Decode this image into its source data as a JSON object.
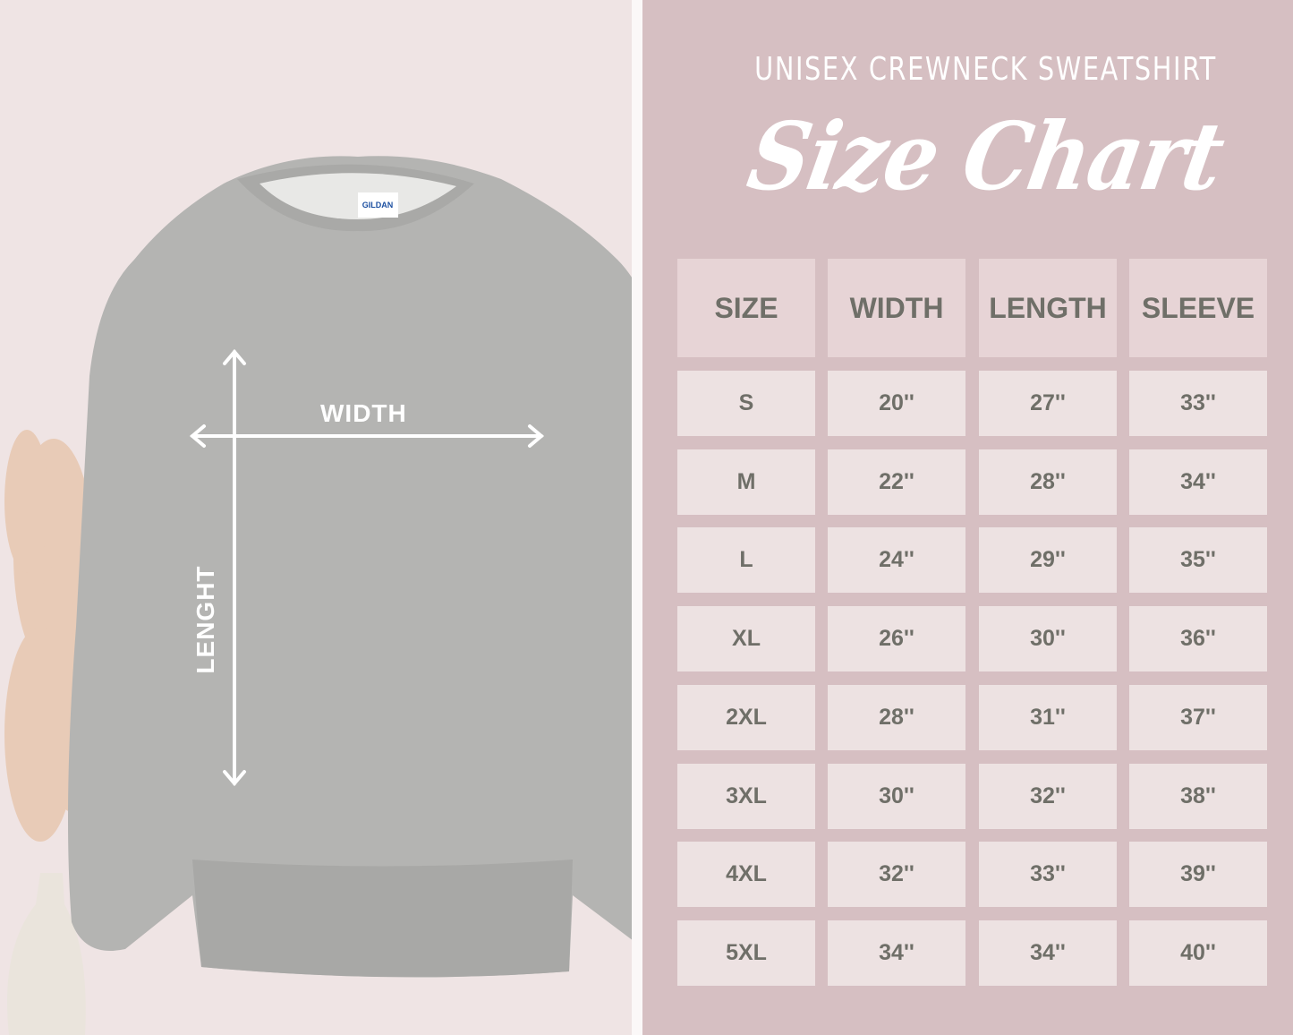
{
  "header": {
    "subtitle": "UNISEX CREWNECK SWEATSHIRT",
    "title": "Size Chart"
  },
  "garment": {
    "label_brand": "GILDAN",
    "width_label": "WIDTH",
    "length_label": "LENGHT"
  },
  "table": {
    "columns": [
      "SIZE",
      "WIDTH",
      "LENGTH",
      "SLEEVE"
    ],
    "rows": [
      [
        "S",
        "20''",
        "27''",
        "33''"
      ],
      [
        "M",
        "22''",
        "28''",
        "34''"
      ],
      [
        "L",
        "24''",
        "29''",
        "35''"
      ],
      [
        "XL",
        "26''",
        "30''",
        "36''"
      ],
      [
        "2XL",
        "28''",
        "31''",
        "37''"
      ],
      [
        "3XL",
        "30''",
        "32''",
        "38''"
      ],
      [
        "4XL",
        "32''",
        "33''",
        "39''"
      ],
      [
        "5XL",
        "34''",
        "34''",
        "40''"
      ]
    ]
  },
  "colors": {
    "left_background": "#efe4e4",
    "right_background": "#d6bfc2",
    "header_cell": "#e7d4d6",
    "body_cell": "#ede2e2",
    "table_text": "#6f6f68",
    "sweatshirt": "#b4b4b2"
  }
}
